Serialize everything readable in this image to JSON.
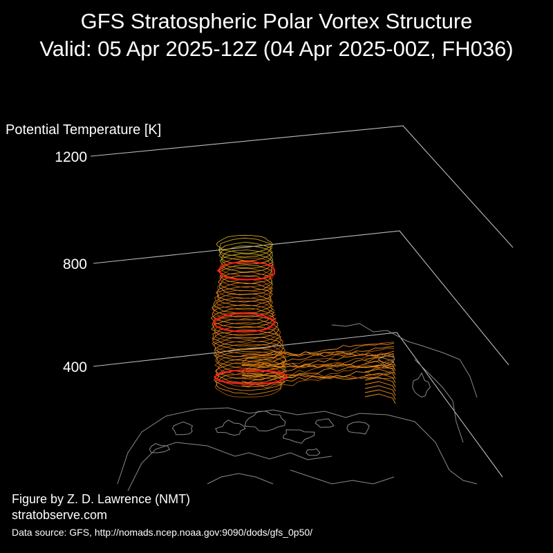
{
  "title": {
    "line1": "GFS Stratospheric Polar Vortex Structure",
    "line2": "Valid: 05 Apr 2025-12Z  (04 Apr 2025-00Z, FH036)"
  },
  "colors": {
    "background": "#000000",
    "text": "#ffffff",
    "axis_lines": "#bdbdbd",
    "coastlines": "#8a8a8a",
    "vortex_mesh": "#f0901a",
    "vortex_mesh_dark": "#b8600e",
    "vortex_mesh_top": "#d8b020",
    "highlight_contours": "#ff1a1a"
  },
  "chart_data": {
    "type": "3d-surface",
    "zlabel": "Potential Temperature [K]",
    "z_ticks": [
      400,
      800,
      1200
    ],
    "z_tick_labels": [
      "400",
      "800",
      "1200"
    ],
    "highlighted_levels": [
      450,
      650,
      850
    ],
    "vortex_extent_K": [
      400,
      950
    ],
    "basemap": "northern-hemisphere coastlines"
  },
  "footer": {
    "credit_line1": "Figure by Z. D. Lawrence (NMT)",
    "credit_line2": "stratobserve.com",
    "data_source": "Data source: GFS, http://nomads.ncep.noaa.gov:9090/dods/gfs_0p50/"
  }
}
